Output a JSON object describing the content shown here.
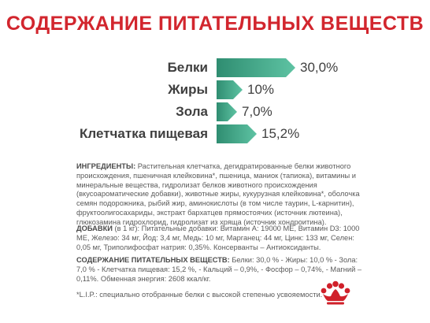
{
  "title": "СОДЕРЖАНИЕ ПИТАТЕЛЬНЫХ ВЕЩЕСТВ",
  "colors": {
    "title": "#d2262e",
    "bar_start": "#2f8d71",
    "bar_end": "#5ec3a3",
    "logo": "#d0202a"
  },
  "chart_data": {
    "type": "bar",
    "categories": [
      "Белки",
      "Жиры",
      "Зола",
      "Клетчатка пищевая"
    ],
    "value_labels": [
      "30,0%",
      "10%",
      "7,0%",
      "15,2%"
    ],
    "values": [
      30.0,
      10.0,
      7.0,
      15.2
    ],
    "title": "",
    "xlabel": "",
    "ylabel": ""
  },
  "ingredients": {
    "heading": "ИНГРЕДИЕНТЫ:",
    "text": " Растительная клетчатка, дегидратированные белки животного происхождения, пшеничная клейковина*, пшеница, маниок (тапиока), витамины и минеральные вещества, гидролизат белков животного происхождения (вкусоароматические добавки), животные жиры, кукурузная клейковина*, оболочка семян подорожника, рыбий жир, аминокислоты (в том числе таурин, L-карнитин), фруктоолигосахариды, экстракт бархатцев прямостоячих (источник лютеина), глюкозамина гидрохлорид, гидролизат из хряща (источник хондроитина)."
  },
  "additives": {
    "heading": "ДОБАВКИ",
    "text": " (в 1 кг): Питательные добавки: Витамин A: 19000 МЕ, Витамин D3: 1000 МЕ, Железо: 34 мг, Йод: 3,4 мг, Медь: 10 мг, Марганец: 44 мг, Цинк: 133 мг, Селен: 0,05 мг, Триполифосфат натрия: 0,35%. Консерванты – Антиоксиданты."
  },
  "nutrients": {
    "heading": "СОДЕРЖАНИЕ ПИТАТЕЛЬНЫХ ВЕЩЕСТВ:",
    "text": " Белки: 30,0 % - Жиры: 10,0 % - Зола: 7,0 % - Клетчатка пищевая: 15,2 %, - Кальций – 0,9%, - Фосфор – 0,74%, - Магний – 0,11%. Обменная энергия: 2608 ккал/кг."
  },
  "footnote": "*L.I.P.: специально отобранные белки с высокой степенью усвояемости.",
  "logo_icon": "royal-canin-crown-icon"
}
